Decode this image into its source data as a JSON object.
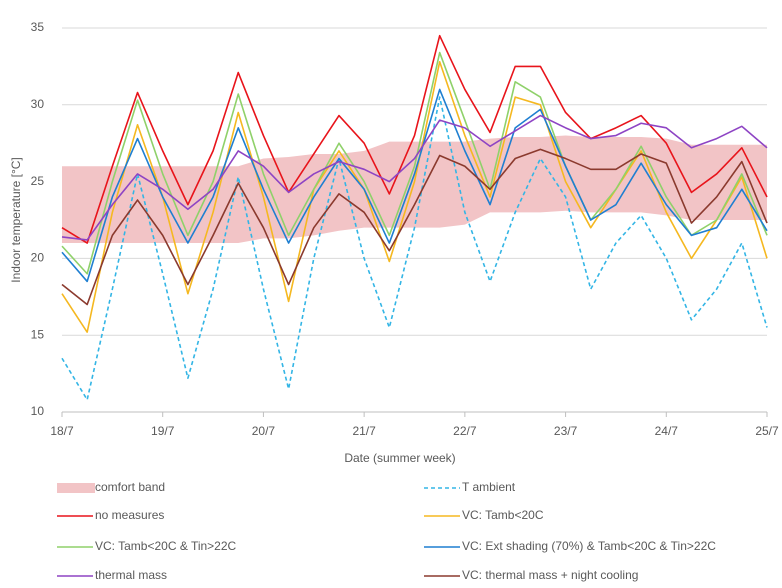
{
  "chart_data": {
    "type": "line",
    "x_label": "Date (summer week)",
    "y_label": "Indoor temperature [°C]",
    "x": [
      0,
      0.25,
      0.5,
      0.75,
      1,
      1.25,
      1.5,
      1.75,
      2,
      2.25,
      2.5,
      2.75,
      3,
      3.25,
      3.5,
      3.75,
      4,
      4.25,
      4.5,
      4.75,
      5,
      5.25,
      5.5,
      5.75,
      6,
      6.25,
      6.5,
      6.75,
      7
    ],
    "xlim": [
      0,
      7
    ],
    "xticks": [
      {
        "value": 0,
        "label": "18/7"
      },
      {
        "value": 1,
        "label": "19/7"
      },
      {
        "value": 2,
        "label": "20/7"
      },
      {
        "value": 3,
        "label": "21/7"
      },
      {
        "value": 4,
        "label": "22/7"
      },
      {
        "value": 5,
        "label": "23/7"
      },
      {
        "value": 6,
        "label": "24/7"
      },
      {
        "value": 7,
        "label": "25/7"
      }
    ],
    "ylim": [
      10,
      35
    ],
    "yticks": [
      10,
      15,
      20,
      25,
      30,
      35
    ],
    "grid": true,
    "legend": "bottom",
    "series": [
      {
        "name": "comfort band",
        "kind": "band",
        "color": "#f2c4c6",
        "values": [
          26,
          26,
          26,
          26,
          26,
          26,
          26,
          26,
          26.5,
          26.6,
          26.8,
          26.8,
          27,
          27.6,
          27.6,
          27.6,
          27.6,
          27.8,
          27.9,
          27.9,
          28,
          27.9,
          27.9,
          27.9,
          27.8,
          27.4,
          27.4,
          27.4,
          27.4
        ],
        "lower": [
          21,
          21,
          21,
          21,
          21,
          21,
          21,
          21,
          21.3,
          21.3,
          21.5,
          21.8,
          22,
          22,
          22,
          22,
          22.2,
          23,
          23,
          23,
          23.1,
          23,
          23,
          23,
          22.8,
          22.5,
          22.5,
          22.5,
          22.5
        ]
      },
      {
        "name": "T ambient",
        "color": "#33b5e5",
        "dashed": true,
        "values": [
          13.5,
          10.8,
          18,
          25.5,
          19,
          12.2,
          18,
          25.3,
          18,
          11.5,
          20,
          26.5,
          20,
          15.5,
          22,
          30.5,
          23,
          18.5,
          23,
          26.5,
          24,
          18,
          21,
          22.8,
          20,
          16,
          18,
          21,
          15.5
        ]
      },
      {
        "name": "no measures",
        "color": "#e8141b",
        "values": [
          22,
          21,
          26,
          30.8,
          27,
          23.5,
          27,
          32.1,
          28,
          24.3,
          26.8,
          29.3,
          27.5,
          24.2,
          28,
          34.5,
          31,
          28.2,
          32.5,
          32.5,
          29.5,
          27.8,
          28.5,
          29.3,
          27.5,
          24.3,
          25.5,
          27.2,
          24
        ]
      },
      {
        "name": "VC: Tamb<20C",
        "color": "#f5b820",
        "values": [
          17.7,
          15.2,
          23,
          28.7,
          24,
          17.7,
          23,
          29.5,
          24,
          17.2,
          24.5,
          27,
          24.5,
          19.8,
          25,
          32.8,
          28,
          24,
          30.5,
          30,
          25,
          22,
          24.5,
          27,
          23,
          20,
          22.5,
          25.3,
          20
        ]
      },
      {
        "name": "VC: Tamb<20C & Tin>22C",
        "color": "#8fd16a",
        "values": [
          20.8,
          19,
          25,
          30.3,
          25.5,
          21.5,
          25,
          30.7,
          25.5,
          21.5,
          24.5,
          27.5,
          25,
          21.5,
          26,
          33.4,
          29,
          24.5,
          31.5,
          30.5,
          26,
          22.5,
          24.5,
          27.3,
          24,
          21.5,
          22.5,
          25.5,
          21.5
        ]
      },
      {
        "name": "VC: Ext shading (70%) & Tamb<20C & Tin>22C",
        "color": "#1f7fd1",
        "values": [
          20.4,
          18.5,
          24,
          27.8,
          24,
          21,
          24,
          28.5,
          24.5,
          21,
          24,
          26.5,
          24.5,
          21,
          25.5,
          31,
          27,
          23.5,
          28.5,
          29.7,
          26,
          22.5,
          23.5,
          26.2,
          23.5,
          21.5,
          22,
          24.5,
          21.8
        ]
      },
      {
        "name": "thermal mass",
        "color": "#8e44c4",
        "values": [
          21.4,
          21.2,
          23.5,
          25.5,
          24.5,
          23.2,
          24.5,
          27,
          26,
          24.3,
          25.5,
          26.3,
          25.8,
          25,
          26.5,
          29,
          28.5,
          27.3,
          28.3,
          29.3,
          28.5,
          27.8,
          28,
          28.8,
          28.5,
          27.2,
          27.8,
          28.6,
          27.2
        ]
      },
      {
        "name": "VC: thermal mass + night cooling",
        "color": "#8b3a2e",
        "values": [
          18.3,
          17,
          21.5,
          23.8,
          21.5,
          18.3,
          21.5,
          24.9,
          22,
          18.3,
          22,
          24.2,
          23,
          20.5,
          23.5,
          26.7,
          26,
          24.5,
          26.5,
          27.1,
          26.5,
          25.8,
          25.8,
          26.8,
          26.2,
          22.3,
          24,
          26.3,
          22.3
        ]
      }
    ]
  }
}
